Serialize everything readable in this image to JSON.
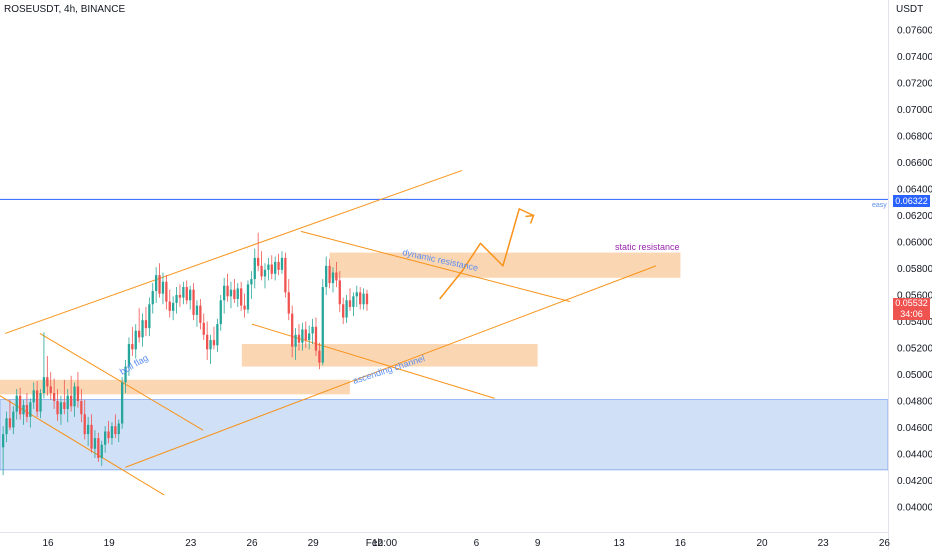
{
  "header": {
    "symbol": "ROSEUSDT, 4h, BINANCE"
  },
  "price_axis": {
    "currency": "USDT"
  },
  "last_price": {
    "value": "0.05532",
    "countdown": "34:06",
    "color": "#ef5350"
  },
  "colors": {
    "up": "#26a69a",
    "down": "#ef5350",
    "annotation": "#f7931a",
    "zone_orange": "#f9c89a",
    "zone_blue": "#b7cff3",
    "line_blue": "#2962ff"
  },
  "annotations": {
    "easy_line": {
      "value": 0.06322,
      "label": "0.06322",
      "tag": "easy"
    },
    "static_resistance": "static resistance",
    "dynamic_resistance": "dynamic resistance",
    "ascending_channel": "ascending channel",
    "bull_flag": "bull flag"
  },
  "chart_data": {
    "type": "candlestick",
    "title": "ROSEUSDT, 4h, BINANCE",
    "ylabel": "USDT",
    "ylim": [
      0.0388,
      0.0778
    ],
    "y_ticks": [
      "0.07600",
      "0.07400",
      "0.07200",
      "0.07000",
      "0.06800",
      "0.06600",
      "0.06400",
      "0.06200",
      "0.06000",
      "0.05800",
      "0.05600",
      "0.05400",
      "0.05200",
      "0.05000",
      "0.04800",
      "0.04600",
      "0.04400",
      "0.04200",
      "0.04000"
    ],
    "x_ticks": [
      {
        "label": "16",
        "day": 16
      },
      {
        "label": "19",
        "day": 19
      },
      {
        "label": "23",
        "day": 23
      },
      {
        "label": "26",
        "day": 26
      },
      {
        "label": "29",
        "day": 29
      },
      {
        "label": "Feb",
        "day": 32
      },
      {
        "label": "12:00",
        "day": 32.5
      },
      {
        "label": "6",
        "day": 37
      },
      {
        "label": "9",
        "day": 40
      },
      {
        "label": "13",
        "day": 44
      },
      {
        "label": "16",
        "day": 47
      },
      {
        "label": "20",
        "day": 51
      },
      {
        "label": "23",
        "day": 54
      },
      {
        "label": "26",
        "day": 57
      }
    ],
    "candle_start_day": 13.8,
    "candle_step_day": 0.1667,
    "candles": [
      [
        0.0445,
        0.0461,
        0.0424,
        0.0455
      ],
      [
        0.0455,
        0.0472,
        0.0449,
        0.0467
      ],
      [
        0.0467,
        0.0481,
        0.0458,
        0.046
      ],
      [
        0.046,
        0.0476,
        0.0455,
        0.0472
      ],
      [
        0.0472,
        0.0489,
        0.0466,
        0.0484
      ],
      [
        0.0484,
        0.049,
        0.0466,
        0.047
      ],
      [
        0.047,
        0.0481,
        0.0462,
        0.0477
      ],
      [
        0.0477,
        0.0486,
        0.0464,
        0.0468
      ],
      [
        0.0468,
        0.0482,
        0.046,
        0.0479
      ],
      [
        0.0479,
        0.0494,
        0.0474,
        0.0488
      ],
      [
        0.0488,
        0.0495,
        0.0468,
        0.0472
      ],
      [
        0.0472,
        0.0489,
        0.0467,
        0.0486
      ],
      [
        0.0486,
        0.0532,
        0.0482,
        0.0498
      ],
      [
        0.0498,
        0.0514,
        0.0484,
        0.0491
      ],
      [
        0.0491,
        0.0502,
        0.0481,
        0.0486
      ],
      [
        0.0486,
        0.0497,
        0.0474,
        0.048
      ],
      [
        0.048,
        0.0489,
        0.0465,
        0.047
      ],
      [
        0.047,
        0.0484,
        0.0462,
        0.0479
      ],
      [
        0.0479,
        0.0496,
        0.047,
        0.0474
      ],
      [
        0.0474,
        0.0489,
        0.0464,
        0.0484
      ],
      [
        0.0484,
        0.0499,
        0.0472,
        0.0476
      ],
      [
        0.0476,
        0.0494,
        0.0468,
        0.0491
      ],
      [
        0.0491,
        0.0502,
        0.0475,
        0.048
      ],
      [
        0.048,
        0.0489,
        0.0464,
        0.047
      ],
      [
        0.047,
        0.0481,
        0.0451,
        0.0455
      ],
      [
        0.0455,
        0.0468,
        0.0446,
        0.0462
      ],
      [
        0.0462,
        0.047,
        0.0441,
        0.0444
      ],
      [
        0.0444,
        0.0458,
        0.0437,
        0.0452
      ],
      [
        0.0452,
        0.0456,
        0.0434,
        0.0437
      ],
      [
        0.0437,
        0.045,
        0.0431,
        0.0447
      ],
      [
        0.0447,
        0.0461,
        0.0441,
        0.0457
      ],
      [
        0.0457,
        0.0465,
        0.0448,
        0.0452
      ],
      [
        0.0452,
        0.0464,
        0.0447,
        0.0461
      ],
      [
        0.0461,
        0.047,
        0.0452,
        0.0455
      ],
      [
        0.0455,
        0.0466,
        0.0449,
        0.0463
      ],
      [
        0.0463,
        0.0498,
        0.0459,
        0.0494
      ],
      [
        0.0494,
        0.0511,
        0.0486,
        0.0506
      ],
      [
        0.0506,
        0.0528,
        0.0499,
        0.0523
      ],
      [
        0.0523,
        0.0536,
        0.0514,
        0.0519
      ],
      [
        0.0519,
        0.0538,
        0.0512,
        0.0533
      ],
      [
        0.0533,
        0.055,
        0.0524,
        0.0528
      ],
      [
        0.0528,
        0.0546,
        0.0521,
        0.0541
      ],
      [
        0.0541,
        0.0551,
        0.0529,
        0.0535
      ],
      [
        0.0535,
        0.0558,
        0.0529,
        0.0553
      ],
      [
        0.0553,
        0.0569,
        0.0546,
        0.0563
      ],
      [
        0.0563,
        0.0581,
        0.0554,
        0.0575
      ],
      [
        0.0575,
        0.0584,
        0.0558,
        0.0561
      ],
      [
        0.0561,
        0.0577,
        0.0553,
        0.057
      ],
      [
        0.057,
        0.0575,
        0.0549,
        0.0555
      ],
      [
        0.0555,
        0.0564,
        0.0543,
        0.0548
      ],
      [
        0.0548,
        0.0559,
        0.0541,
        0.0554
      ],
      [
        0.0554,
        0.0566,
        0.0546,
        0.056
      ],
      [
        0.056,
        0.0568,
        0.0551,
        0.0558
      ],
      [
        0.0558,
        0.057,
        0.0553,
        0.0566
      ],
      [
        0.0566,
        0.0571,
        0.0553,
        0.0556
      ],
      [
        0.0556,
        0.0567,
        0.0549,
        0.0564
      ],
      [
        0.0564,
        0.0569,
        0.0541,
        0.0545
      ],
      [
        0.0545,
        0.0556,
        0.0536,
        0.0552
      ],
      [
        0.0552,
        0.0557,
        0.0534,
        0.0539
      ],
      [
        0.0539,
        0.0546,
        0.0526,
        0.053
      ],
      [
        0.053,
        0.054,
        0.0511,
        0.0519
      ],
      [
        0.0519,
        0.053,
        0.0508,
        0.0526
      ],
      [
        0.0526,
        0.0536,
        0.0519,
        0.0522
      ],
      [
        0.0522,
        0.0542,
        0.0517,
        0.0538
      ],
      [
        0.0538,
        0.056,
        0.0533,
        0.0556
      ],
      [
        0.0556,
        0.0573,
        0.0546,
        0.0567
      ],
      [
        0.0567,
        0.0576,
        0.0555,
        0.0559
      ],
      [
        0.0559,
        0.057,
        0.055,
        0.0564
      ],
      [
        0.0564,
        0.0572,
        0.0554,
        0.0557
      ],
      [
        0.0557,
        0.0569,
        0.0551,
        0.0565
      ],
      [
        0.0565,
        0.057,
        0.0548,
        0.0552
      ],
      [
        0.0552,
        0.0561,
        0.0543,
        0.0549
      ],
      [
        0.0549,
        0.0571,
        0.0546,
        0.0568
      ],
      [
        0.0568,
        0.0578,
        0.0557,
        0.0572
      ],
      [
        0.0572,
        0.0595,
        0.0565,
        0.0588
      ],
      [
        0.0588,
        0.0607,
        0.0578,
        0.0582
      ],
      [
        0.0582,
        0.0593,
        0.0571,
        0.0574
      ],
      [
        0.0574,
        0.0584,
        0.0565,
        0.0579
      ],
      [
        0.0579,
        0.0588,
        0.0571,
        0.0583
      ],
      [
        0.0583,
        0.059,
        0.0572,
        0.0576
      ],
      [
        0.0576,
        0.0589,
        0.0571,
        0.0585
      ],
      [
        0.0585,
        0.0591,
        0.0575,
        0.0579
      ],
      [
        0.0579,
        0.0593,
        0.0576,
        0.0588
      ],
      [
        0.0588,
        0.0592,
        0.0558,
        0.0562
      ],
      [
        0.0562,
        0.0572,
        0.0541,
        0.0546
      ],
      [
        0.0546,
        0.0552,
        0.0513,
        0.0521
      ],
      [
        0.0521,
        0.0535,
        0.0511,
        0.053
      ],
      [
        0.053,
        0.0538,
        0.0518,
        0.0524
      ],
      [
        0.0524,
        0.0539,
        0.0518,
        0.0534
      ],
      [
        0.0534,
        0.054,
        0.052,
        0.0526
      ],
      [
        0.0526,
        0.0537,
        0.0519,
        0.0531
      ],
      [
        0.0531,
        0.0542,
        0.0523,
        0.0536
      ],
      [
        0.0536,
        0.0543,
        0.0514,
        0.0518
      ],
      [
        0.0518,
        0.0524,
        0.0504,
        0.0509
      ],
      [
        0.0509,
        0.0572,
        0.0507,
        0.0566
      ],
      [
        0.0566,
        0.0589,
        0.056,
        0.0582
      ],
      [
        0.0582,
        0.0587,
        0.0565,
        0.0569
      ],
      [
        0.0569,
        0.0581,
        0.0562,
        0.0577
      ],
      [
        0.0577,
        0.0585,
        0.0566,
        0.0571
      ],
      [
        0.0571,
        0.0578,
        0.0547,
        0.0553
      ],
      [
        0.0553,
        0.0558,
        0.0538,
        0.0543
      ],
      [
        0.0543,
        0.056,
        0.0539,
        0.0556
      ],
      [
        0.0556,
        0.0565,
        0.0548,
        0.0551
      ],
      [
        0.0551,
        0.0562,
        0.0544,
        0.0559
      ],
      [
        0.0559,
        0.0567,
        0.0551,
        0.0562
      ],
      [
        0.0562,
        0.0566,
        0.0549,
        0.0553
      ],
      [
        0.0553,
        0.0565,
        0.0549,
        0.0561
      ],
      [
        0.0561,
        0.0564,
        0.0548,
        0.0553
      ]
    ],
    "zones": [
      {
        "name": "upper resistance zone",
        "y": [
          0.0573,
          0.0592
        ],
        "x_day": [
          29.8,
          47.0
        ],
        "color": "#f9c89a"
      },
      {
        "name": "mid support zone",
        "y": [
          0.0506,
          0.0523
        ],
        "x_day": [
          25.5,
          40.0
        ],
        "color": "#f9c89a"
      },
      {
        "name": "bull flag zone",
        "y": [
          0.0485,
          0.0496
        ],
        "x_day": [
          12.0,
          30.8
        ],
        "color": "#f9c89a"
      },
      {
        "name": "demand zone",
        "y": [
          0.0428,
          0.0481
        ],
        "x_day": [
          12.0,
          58.0
        ],
        "color": "#b7cff3"
      }
    ],
    "lines": [
      {
        "name": "channel top",
        "p1": [
          13.9,
          0.0531
        ],
        "p2": [
          36.3,
          0.0654
        ]
      },
      {
        "name": "channel bottom",
        "p1": [
          19.8,
          0.043
        ],
        "p2": [
          45.8,
          0.0582
        ]
      },
      {
        "name": "dynamic resistance",
        "p1": [
          28.4,
          0.0608
        ],
        "p2": [
          41.6,
          0.0555
        ]
      },
      {
        "name": "mid descending",
        "p1": [
          26.0,
          0.0538
        ],
        "p2": [
          37.9,
          0.0482
        ]
      },
      {
        "name": "flag upper",
        "p1": [
          15.6,
          0.0531
        ],
        "p2": [
          23.6,
          0.0458
        ]
      },
      {
        "name": "flag lower",
        "p1": [
          13.0,
          0.049
        ],
        "p2": [
          21.7,
          0.0409
        ]
      }
    ],
    "projection": [
      [
        35.2,
        0.0557
      ],
      [
        36.3,
        0.0578
      ],
      [
        37.2,
        0.0599
      ],
      [
        38.3,
        0.0582
      ],
      [
        39.1,
        0.0625
      ],
      [
        39.8,
        0.062
      ]
    ]
  }
}
